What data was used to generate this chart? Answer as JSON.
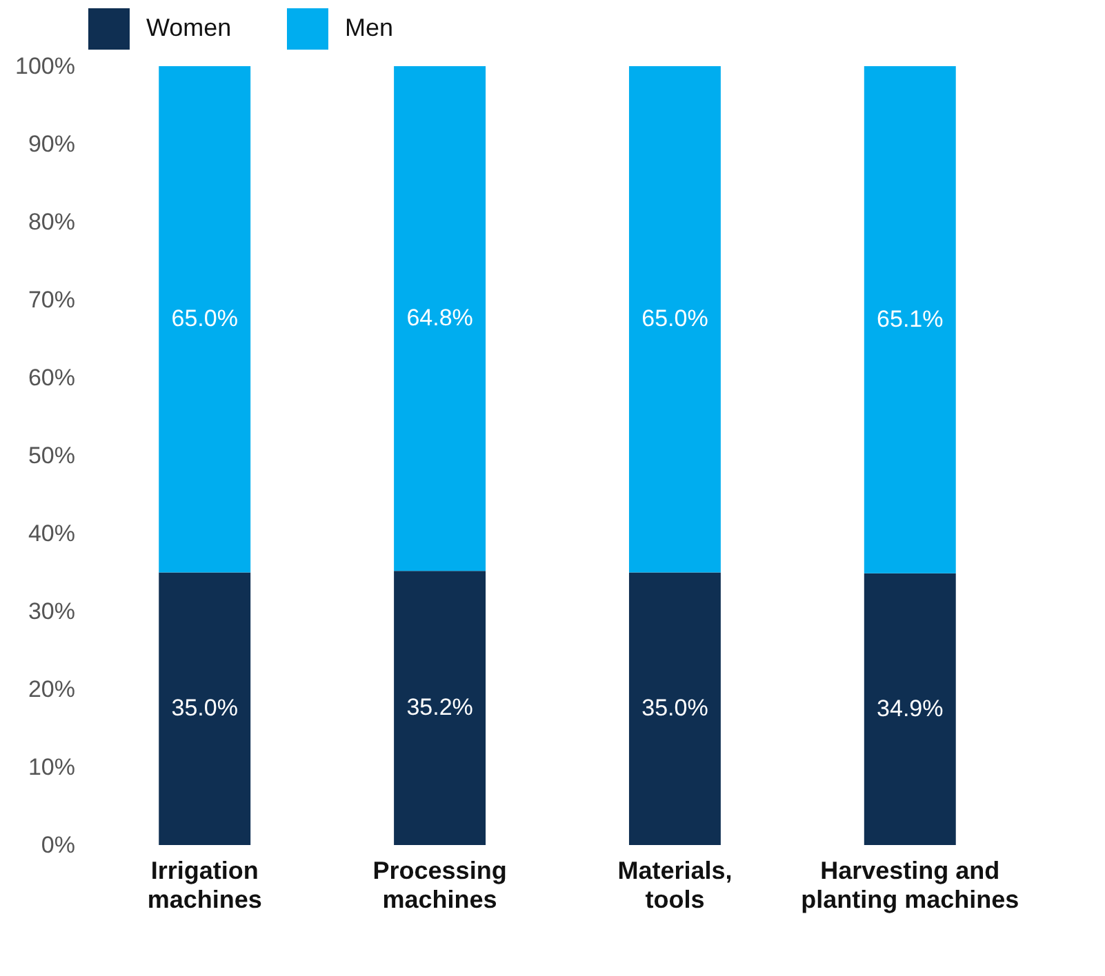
{
  "chart_data": {
    "type": "bar",
    "stacked": true,
    "categories": [
      "Irrigation machines",
      "Processing machines",
      "Materials, tools",
      "Harvesting and planting machines"
    ],
    "series": [
      {
        "name": "Women",
        "color": "#0f2f52",
        "values": [
          35.0,
          35.2,
          35.0,
          34.9
        ],
        "value_labels": [
          "35.0%",
          "35.2%",
          "35.0%",
          "34.9%"
        ]
      },
      {
        "name": "Men",
        "color": "#00adef",
        "values": [
          65.0,
          64.8,
          65.0,
          65.1
        ],
        "value_labels": [
          "65.0%",
          "64.8%",
          "65.0%",
          "65.1%"
        ]
      }
    ],
    "ylim": [
      0,
      100
    ],
    "yticks": [
      {
        "value": 0,
        "label": "0%"
      },
      {
        "value": 10,
        "label": "10%"
      },
      {
        "value": 20,
        "label": "20%"
      },
      {
        "value": 30,
        "label": "30%"
      },
      {
        "value": 40,
        "label": "40%"
      },
      {
        "value": 50,
        "label": "50%"
      },
      {
        "value": 60,
        "label": "60%"
      },
      {
        "value": 70,
        "label": "70%"
      },
      {
        "value": 80,
        "label": "80%"
      },
      {
        "value": 90,
        "label": "90%"
      },
      {
        "value": 100,
        "label": "100%"
      }
    ],
    "grid": false,
    "legend": "top"
  }
}
